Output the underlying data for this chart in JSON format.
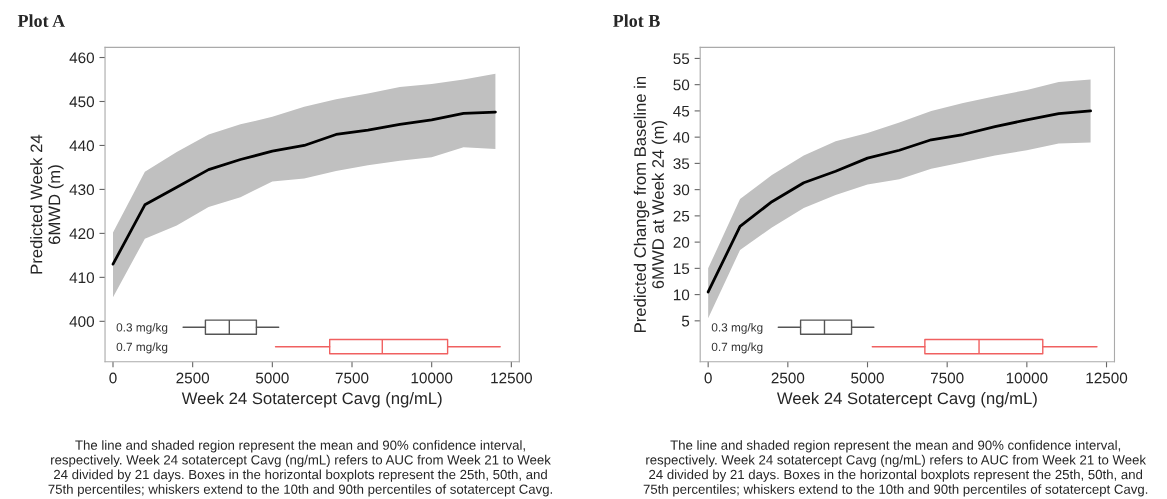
{
  "chart_data": [
    {
      "type": "line",
      "title": "Plot A",
      "xlabel": "Week 24 Sotatercept Cavg (ng/mL)",
      "ylabel": "Predicted Week 24\n6MWD (m)",
      "xlim": [
        -250,
        12750
      ],
      "xticks": [
        0,
        2500,
        5000,
        7500,
        10000,
        12500
      ],
      "ylim": [
        390.8,
        462.3
      ],
      "yticks": [
        400,
        410,
        420,
        430,
        440,
        450,
        460
      ],
      "grid": false,
      "series": [
        {
          "type": "line",
          "color": "#000000",
          "x": [
            0,
            1000,
            2000,
            3000,
            4000,
            5000,
            6000,
            7000,
            8000,
            9000,
            10000,
            11000,
            12000
          ],
          "values": [
            413,
            426.5,
            430.5,
            434.5,
            436.8,
            438.7,
            440,
            442.5,
            443.5,
            444.8,
            445.8,
            447.3,
            447.6
          ],
          "lower": [
            405.5,
            418.8,
            421.8,
            426,
            428.2,
            431.8,
            432.5,
            434.2,
            435.5,
            436.5,
            437.3,
            439.6,
            439.2
          ],
          "upper": [
            420.2,
            434,
            438.5,
            442.5,
            444.8,
            446.5,
            448.8,
            450.5,
            451.8,
            453.3,
            454,
            455,
            456.3
          ]
        }
      ],
      "annotations": [
        "The line and shaded region represent the mean and 90% confidence interval,\nrespectively. Week 24 sotatercept Cavg (ng/mL) refers to AUC from Week 21 to Week\n24 divided by 21 days. Boxes in the horizontal boxplots represent the 25th, 50th, and\n75th percentiles; whiskers extend to the 10th and 90th percentiles of sotatercept Cavg."
      ]
    },
    {
      "type": "box",
      "orientation": "horizontal",
      "categories": [
        "0.3 mg/kg",
        "0.7 mg/kg"
      ],
      "xlim": [
        -250,
        12750
      ],
      "tick_labels": "y",
      "colors": [
        "#555555",
        "#f06060"
      ],
      "boxes": [
        {
          "low": 2200,
          "q1": 2900,
          "median": 3650,
          "q3": 4500,
          "high": 5200
        },
        {
          "low": 5100,
          "q1": 6800,
          "median": 8450,
          "q3": 10500,
          "high": 12150
        }
      ]
    },
    {
      "type": "line",
      "title": "Plot B",
      "xlabel": "Week 24 Sotatercept Cavg (ng/mL)",
      "ylabel": "Predicted Change from Baseline in\n6MWD at Week 24 (m)",
      "xlim": [
        -250,
        12750
      ],
      "xticks": [
        0,
        2500,
        5000,
        7500,
        10000,
        12500
      ],
      "ylim": [
        -2.8,
        57.1
      ],
      "yticks": [
        5,
        10,
        15,
        20,
        25,
        30,
        35,
        40,
        45,
        50,
        55
      ],
      "grid": false,
      "series": [
        {
          "type": "line",
          "color": "#000000",
          "x": [
            0,
            1000,
            2000,
            3000,
            4000,
            5000,
            6000,
            7000,
            8000,
            9000,
            10000,
            11000,
            12000
          ],
          "values": [
            10.5,
            23,
            27.7,
            31.3,
            33.5,
            36,
            37.5,
            39.5,
            40.5,
            42,
            43.3,
            44.5,
            45
          ],
          "lower": [
            5.5,
            18.5,
            22.8,
            26.5,
            29,
            31,
            32,
            34,
            35.2,
            36.5,
            37.5,
            38.8,
            39
          ],
          "upper": [
            15,
            28.2,
            32.8,
            36.5,
            39.2,
            40.8,
            42.8,
            45,
            46.5,
            47.8,
            49,
            50.5,
            51
          ]
        }
      ],
      "annotations": [
        "The line and shaded region represent the mean and 90% confidence interval,\nrespectively. Week 24 sotatercept Cavg (ng/mL) refers to AUC from Week 21 to Week\n24 divided by 21 days. Boxes in the horizontal boxplots represent the 25th, 50th, and\n75th percentiles; whiskers extend to the 10th and 90th percentiles of sotatercept Cavg."
      ]
    },
    {
      "type": "box",
      "orientation": "horizontal",
      "categories": [
        "0.3 mg/kg",
        "0.7 mg/kg"
      ],
      "xlim": [
        -250,
        12750
      ],
      "tick_labels": "y",
      "colors": [
        "#555555",
        "#f06060"
      ],
      "boxes": [
        {
          "low": 2200,
          "q1": 2900,
          "median": 3650,
          "q3": 4500,
          "high": 5200
        },
        {
          "low": 5150,
          "q1": 6800,
          "median": 8500,
          "q3": 10500,
          "high": 12200
        }
      ]
    }
  ]
}
